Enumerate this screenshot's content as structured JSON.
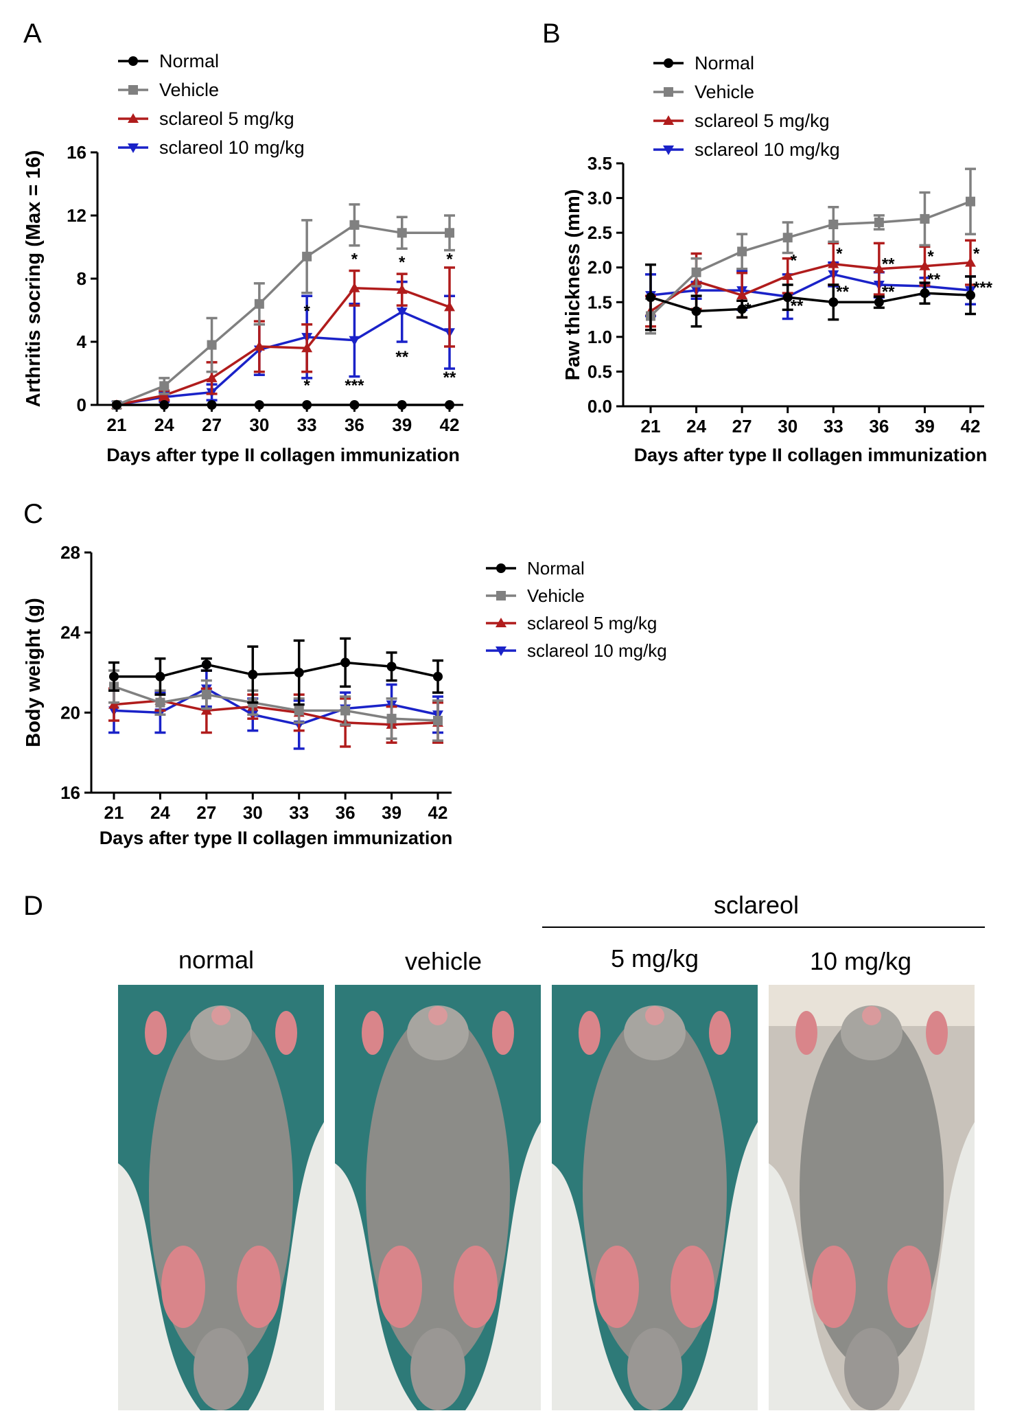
{
  "colors": {
    "normal": "#000000",
    "vehicle": "#808080",
    "s5": "#b01c1c",
    "s10": "#1a22c8",
    "bg_teal": "#2e7a78",
    "fur": "#8c8c88",
    "paw": "#d9858a",
    "glove": "#e9eae6"
  },
  "chart_data": [
    {
      "type": "line",
      "panel": "A",
      "xlabel": "Days after type II collagen immunization",
      "ylabel": "Arthritis socring (Max = 16)",
      "x": [
        21,
        24,
        27,
        30,
        33,
        36,
        39,
        42
      ],
      "yticks": [
        0,
        4,
        8,
        12,
        16
      ],
      "ylim": [
        0,
        16
      ],
      "legend_position": "top-left",
      "series": [
        {
          "key": "normal",
          "name": "Normal",
          "marker": "circle",
          "values": [
            0,
            0,
            0,
            0,
            0,
            0,
            0,
            0
          ],
          "errors": [
            0,
            0,
            0,
            0,
            0,
            0,
            0,
            0
          ]
        },
        {
          "key": "vehicle",
          "name": "Vehicle",
          "marker": "square",
          "values": [
            0,
            1.2,
            3.8,
            6.4,
            9.4,
            11.4,
            10.9,
            10.9
          ],
          "errors": [
            0,
            0.5,
            1.7,
            1.3,
            2.3,
            1.3,
            1.0,
            1.1
          ]
        },
        {
          "key": "s5",
          "name": "sclareol 5 mg/kg",
          "marker": "triangle-up",
          "values": [
            0,
            0.6,
            1.7,
            3.7,
            3.6,
            7.4,
            7.3,
            6.2
          ],
          "errors": [
            0,
            0.3,
            1.0,
            1.6,
            1.5,
            1.1,
            1.0,
            2.5
          ]
        },
        {
          "key": "s10",
          "name": "sclareol 10 mg/kg",
          "marker": "triangle-down",
          "values": [
            0,
            0.5,
            0.8,
            3.5,
            4.3,
            4.1,
            5.9,
            4.6
          ],
          "errors": [
            0,
            0.3,
            0.5,
            1.6,
            2.6,
            2.3,
            1.9,
            2.3
          ]
        }
      ],
      "annotations": [
        {
          "x": 33,
          "y": 5.6,
          "text": "*"
        },
        {
          "x": 33,
          "y": 0.9,
          "text": "*"
        },
        {
          "x": 36,
          "y": 8.9,
          "text": "*"
        },
        {
          "x": 36,
          "y": 0.9,
          "text": "***"
        },
        {
          "x": 39,
          "y": 8.7,
          "text": "*"
        },
        {
          "x": 39,
          "y": 2.7,
          "text": "**"
        },
        {
          "x": 42,
          "y": 8.9,
          "text": "*"
        },
        {
          "x": 42,
          "y": 1.4,
          "text": "**"
        }
      ]
    },
    {
      "type": "line",
      "panel": "B",
      "xlabel": "Days after type II collagen immunization",
      "ylabel": "Paw thickness (mm)",
      "x": [
        21,
        24,
        27,
        30,
        33,
        36,
        39,
        42
      ],
      "yticks": [
        0.0,
        0.5,
        1.0,
        1.5,
        2.0,
        2.5,
        3.0,
        3.5
      ],
      "ylim": [
        0,
        3.5
      ],
      "legend_position": "top-left",
      "series": [
        {
          "key": "normal",
          "name": "Normal",
          "marker": "circle",
          "values": [
            1.57,
            1.37,
            1.4,
            1.57,
            1.5,
            1.5,
            1.63,
            1.6
          ],
          "errors": [
            0.47,
            0.22,
            0.12,
            0.18,
            0.25,
            0.08,
            0.15,
            0.27
          ]
        },
        {
          "key": "vehicle",
          "name": "Vehicle",
          "marker": "square",
          "values": [
            1.3,
            1.93,
            2.23,
            2.43,
            2.62,
            2.65,
            2.7,
            2.95
          ],
          "errors": [
            0.25,
            0.2,
            0.25,
            0.22,
            0.25,
            0.1,
            0.38,
            0.47
          ]
        },
        {
          "key": "s5",
          "name": "sclareol 5 mg/kg",
          "marker": "triangle-up",
          "values": [
            1.37,
            1.8,
            1.6,
            1.88,
            2.05,
            1.98,
            2.02,
            2.07
          ],
          "errors": [
            0.22,
            0.4,
            0.32,
            0.25,
            0.3,
            0.37,
            0.28,
            0.32
          ]
        },
        {
          "key": "s10",
          "name": "sclareol 10 mg/kg",
          "marker": "triangle-down",
          "values": [
            1.6,
            1.67,
            1.67,
            1.58,
            1.9,
            1.75,
            1.73,
            1.67
          ],
          "errors": [
            0.3,
            0.12,
            0.28,
            0.32,
            0.17,
            0.18,
            0.12,
            0.2
          ]
        }
      ],
      "annotations": [
        {
          "x": 27,
          "y": 1.33,
          "text": "*"
        },
        {
          "x": 30,
          "y": 2.02,
          "text": "*"
        },
        {
          "x": 30,
          "y": 1.37,
          "text": "**"
        },
        {
          "x": 33,
          "y": 2.12,
          "text": "*"
        },
        {
          "x": 33,
          "y": 1.57,
          "text": "**"
        },
        {
          "x": 36,
          "y": 1.97,
          "text": "**"
        },
        {
          "x": 36,
          "y": 1.57,
          "text": "**"
        },
        {
          "x": 39,
          "y": 2.08,
          "text": "*"
        },
        {
          "x": 39,
          "y": 1.75,
          "text": "**"
        },
        {
          "x": 42,
          "y": 2.12,
          "text": "*"
        },
        {
          "x": 42,
          "y": 1.63,
          "text": "***"
        }
      ]
    },
    {
      "type": "line",
      "panel": "C",
      "xlabel": "Days after type II collagen immunization",
      "ylabel": "Body weight (g)",
      "x": [
        21,
        24,
        27,
        30,
        33,
        36,
        39,
        42
      ],
      "yticks": [
        16,
        20,
        24,
        28
      ],
      "ylim": [
        16,
        28
      ],
      "legend_position": "right",
      "series": [
        {
          "key": "normal",
          "name": "Normal",
          "marker": "circle",
          "values": [
            21.8,
            21.8,
            22.4,
            21.9,
            22.0,
            22.5,
            22.3,
            21.8
          ],
          "errors": [
            0.7,
            0.9,
            0.3,
            1.4,
            1.6,
            1.2,
            0.7,
            0.8
          ]
        },
        {
          "key": "vehicle",
          "name": "Vehicle",
          "marker": "square",
          "values": [
            21.3,
            20.5,
            20.9,
            20.5,
            20.1,
            20.1,
            19.7,
            19.6
          ],
          "errors": [
            0.8,
            0.6,
            0.7,
            0.6,
            0.6,
            0.7,
            1.0,
            1.0
          ]
        },
        {
          "key": "s5",
          "name": "sclareol 5 mg/kg",
          "marker": "triangle-up",
          "values": [
            20.4,
            20.6,
            20.1,
            20.3,
            20.0,
            19.5,
            19.4,
            19.5
          ],
          "errors": [
            0.8,
            0.5,
            1.1,
            0.6,
            0.9,
            1.2,
            0.9,
            1.0
          ]
        },
        {
          "key": "s10",
          "name": "sclareol 10 mg/kg",
          "marker": "triangle-down",
          "values": [
            20.1,
            20.0,
            21.2,
            19.9,
            19.4,
            20.2,
            20.4,
            19.9
          ],
          "errors": [
            1.1,
            1.0,
            0.9,
            0.8,
            1.2,
            0.8,
            1.0,
            0.9
          ]
        }
      ],
      "annotations": []
    }
  ],
  "panels": {
    "a": "A",
    "b": "B",
    "c": "C",
    "d": "D"
  },
  "photos": {
    "group_label": "sclareol",
    "labels": [
      "normal",
      "vehicle",
      "5 mg/kg",
      "10 mg/kg"
    ]
  }
}
